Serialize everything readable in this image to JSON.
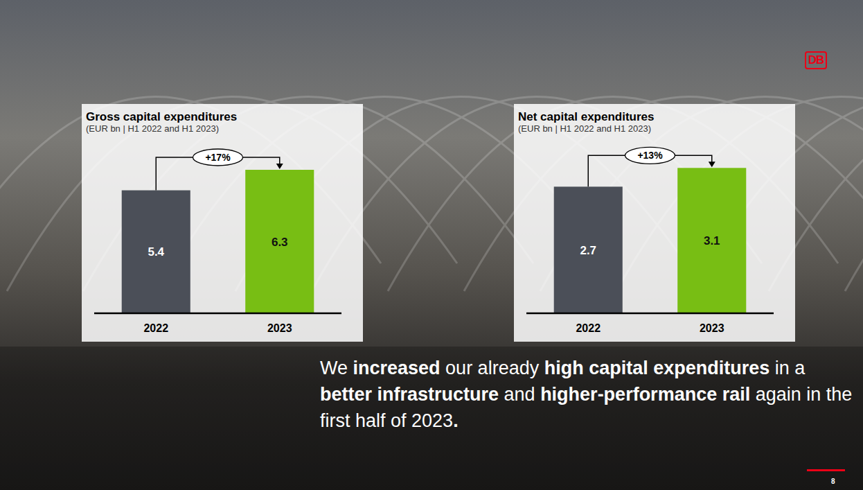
{
  "chart_data": [
    {
      "type": "bar",
      "title": "Gross capital expenditures",
      "subtitle": "(EUR bn | H1 2022 and H1 2023)",
      "categories": [
        "2022",
        "2023"
      ],
      "values": [
        5.4,
        6.3
      ],
      "colors": [
        "#4b4f58",
        "#78be14"
      ],
      "ylim": [
        0,
        7
      ],
      "data_labels": true,
      "tick_labels": "x",
      "annotation": "+17%"
    },
    {
      "type": "bar",
      "title": "Net capital expenditures",
      "subtitle": "(EUR bn | H1 2022 and H1 2023)",
      "categories": [
        "2022",
        "2023"
      ],
      "values": [
        2.7,
        3.1
      ],
      "colors": [
        "#4b4f58",
        "#78be14"
      ],
      "ylim": [
        0,
        3.4
      ],
      "data_labels": true,
      "tick_labels": "x",
      "annotation": "+13%"
    }
  ],
  "headline": [
    {
      "text": "We ",
      "bold": false
    },
    {
      "text": "increased",
      "bold": true
    },
    {
      "text": " our already ",
      "bold": false
    },
    {
      "text": "high capital expenditures",
      "bold": true
    },
    {
      "text": " in a ",
      "bold": false
    },
    {
      "text": "better infrastructure",
      "bold": true
    },
    {
      "text": " and ",
      "bold": false
    },
    {
      "text": "higher-performance rail",
      "bold": true
    },
    {
      "text": " again in the first half of 2023",
      "bold": false
    },
    {
      "text": ".",
      "bold": true
    }
  ],
  "logo": "DB",
  "page_number": 8
}
